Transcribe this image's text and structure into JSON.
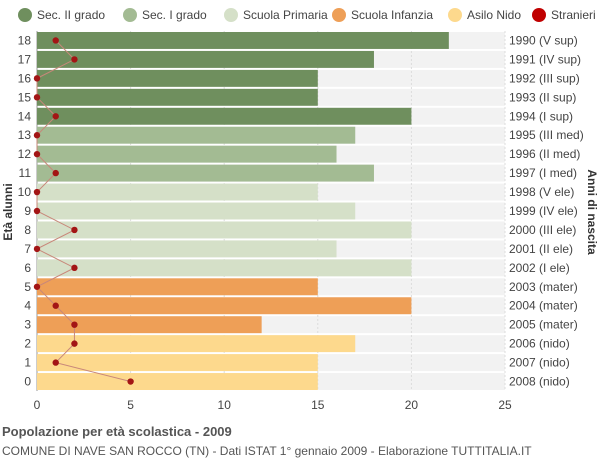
{
  "chart_data": {
    "type": "bar",
    "orientation": "horizontal",
    "title": "Popolazione per età scolastica - 2009",
    "subtitle": "COMUNE DI NAVE SAN ROCCO (TN) - Dati ISTAT 1° gennaio 2009 - Elaborazione TUTTITALIA.IT",
    "ylabel_left": "Età alunni",
    "ylabel_right": "Anni di nascita",
    "xlim": [
      0,
      25
    ],
    "xticks": [
      0,
      5,
      10,
      15,
      20,
      25
    ],
    "grid": true,
    "legend_position": "top",
    "legend": [
      {
        "key": "sec2",
        "label": "Sec. II grado",
        "color": "#6f8f5e"
      },
      {
        "key": "sec1",
        "label": "Sec. I grado",
        "color": "#a3bb93"
      },
      {
        "key": "prim",
        "label": "Scuola Primaria",
        "color": "#d5e0c8"
      },
      {
        "key": "inf",
        "label": "Scuola Infanzia",
        "color": "#ee9f57"
      },
      {
        "key": "nido",
        "label": "Asilo Nido",
        "color": "#fdd98d"
      },
      {
        "key": "stranieri",
        "label": "Stranieri",
        "color": "#c00000"
      }
    ],
    "rows": [
      {
        "age": "18",
        "birth": "1990 (V sup)",
        "value": 22,
        "stranieri": 1,
        "group": "sec2"
      },
      {
        "age": "17",
        "birth": "1991 (IV sup)",
        "value": 18,
        "stranieri": 2,
        "group": "sec2"
      },
      {
        "age": "16",
        "birth": "1992 (III sup)",
        "value": 15,
        "stranieri": 0,
        "group": "sec2"
      },
      {
        "age": "15",
        "birth": "1993 (II sup)",
        "value": 15,
        "stranieri": 0,
        "group": "sec2"
      },
      {
        "age": "14",
        "birth": "1994 (I sup)",
        "value": 20,
        "stranieri": 1,
        "group": "sec2"
      },
      {
        "age": "13",
        "birth": "1995 (III med)",
        "value": 17,
        "stranieri": 0,
        "group": "sec1"
      },
      {
        "age": "12",
        "birth": "1996 (II med)",
        "value": 16,
        "stranieri": 0,
        "group": "sec1"
      },
      {
        "age": "11",
        "birth": "1997 (I med)",
        "value": 18,
        "stranieri": 1,
        "group": "sec1"
      },
      {
        "age": "10",
        "birth": "1998 (V ele)",
        "value": 15,
        "stranieri": 0,
        "group": "prim"
      },
      {
        "age": "9",
        "birth": "1999 (IV ele)",
        "value": 17,
        "stranieri": 0,
        "group": "prim"
      },
      {
        "age": "8",
        "birth": "2000 (III ele)",
        "value": 20,
        "stranieri": 2,
        "group": "prim"
      },
      {
        "age": "7",
        "birth": "2001 (II ele)",
        "value": 16,
        "stranieri": 0,
        "group": "prim"
      },
      {
        "age": "6",
        "birth": "2002 (I ele)",
        "value": 20,
        "stranieri": 2,
        "group": "prim"
      },
      {
        "age": "5",
        "birth": "2003 (mater)",
        "value": 15,
        "stranieri": 0,
        "group": "inf"
      },
      {
        "age": "4",
        "birth": "2004 (mater)",
        "value": 20,
        "stranieri": 1,
        "group": "inf"
      },
      {
        "age": "3",
        "birth": "2005 (mater)",
        "value": 12,
        "stranieri": 2,
        "group": "inf"
      },
      {
        "age": "2",
        "birth": "2006 (nido)",
        "value": 17,
        "stranieri": 2,
        "group": "nido"
      },
      {
        "age": "1",
        "birth": "2007 (nido)",
        "value": 15,
        "stranieri": 1,
        "group": "nido"
      },
      {
        "age": "0",
        "birth": "2008 (nido)",
        "value": 15,
        "stranieri": 5,
        "group": "nido"
      }
    ],
    "stranieri_line_color": "#c8877a"
  }
}
